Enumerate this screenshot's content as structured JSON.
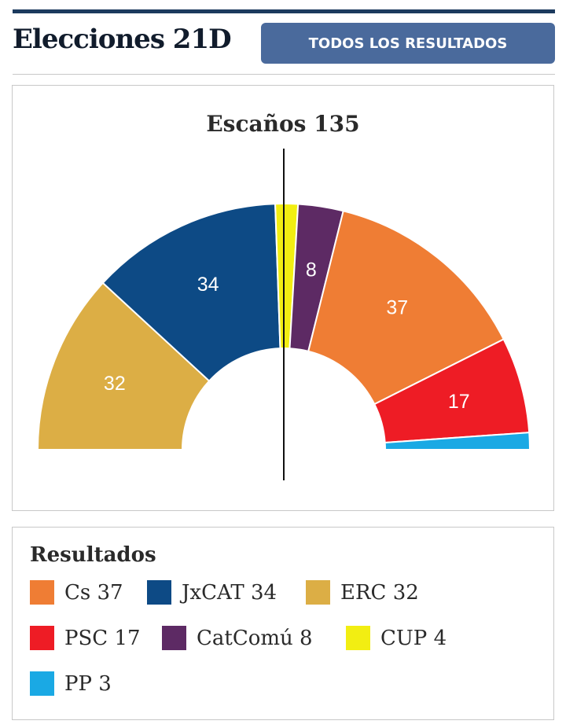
{
  "header": {
    "title": "Elecciones 21D",
    "button_label": "TODOS LOS RESULTADOS"
  },
  "legend": {
    "title": "Resultados",
    "items": [
      {
        "label": "Cs 37",
        "color": "#ef7d34"
      },
      {
        "label": "JxCAT 34",
        "color": "#0d4a85"
      },
      {
        "label": "ERC 32",
        "color": "#dcae45"
      },
      {
        "label": "PSC 17",
        "color": "#ee1c25"
      },
      {
        "label": "CatComú 8",
        "color": "#5d2a64"
      },
      {
        "label": "CUP 4",
        "color": "#f2ee12"
      },
      {
        "label": "PP 3",
        "color": "#1aa9e4"
      }
    ]
  },
  "chart_data": {
    "type": "pie",
    "variant": "hemicycle",
    "title": "Escaños 135",
    "total": 135,
    "majority_line": true,
    "series": [
      {
        "name": "ERC",
        "value": 32,
        "color": "#dcae45",
        "label": "32"
      },
      {
        "name": "JxCAT",
        "value": 34,
        "color": "#0d4a85",
        "label": "34"
      },
      {
        "name": "CUP",
        "value": 4,
        "color": "#f2ee12",
        "label": ""
      },
      {
        "name": "CatComú",
        "value": 8,
        "color": "#5d2a64",
        "label": "8"
      },
      {
        "name": "Cs",
        "value": 37,
        "color": "#ef7d34",
        "label": "37"
      },
      {
        "name": "PSC",
        "value": 17,
        "color": "#ee1c25",
        "label": "17"
      },
      {
        "name": "PP",
        "value": 3,
        "color": "#1aa9e4",
        "label": ""
      }
    ]
  }
}
